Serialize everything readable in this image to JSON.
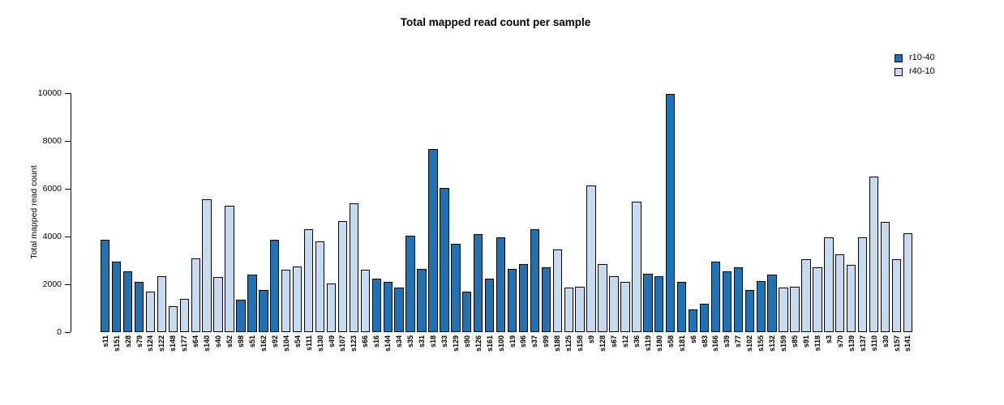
{
  "chart_data": {
    "type": "bar",
    "title": "Total mapped read count per sample",
    "xlabel": "",
    "ylabel": "Total mapped read count",
    "ylim": [
      0,
      10000
    ],
    "yticks": [
      0,
      2000,
      4000,
      6000,
      8000,
      10000
    ],
    "grid": false,
    "legend_position": "top-right",
    "legend": [
      {
        "label": "r10-40",
        "color": "#2171b5"
      },
      {
        "label": "r40-10",
        "color": "#c6dbef"
      }
    ],
    "bars": [
      {
        "sample": "s11",
        "group": "r10-40",
        "value": 3850
      },
      {
        "sample": "s151",
        "group": "r10-40",
        "value": 2950
      },
      {
        "sample": "s28",
        "group": "r10-40",
        "value": 2550
      },
      {
        "sample": "s79",
        "group": "r10-40",
        "value": 2100
      },
      {
        "sample": "s124",
        "group": "r40-10",
        "value": 1700
      },
      {
        "sample": "s122",
        "group": "r40-10",
        "value": 2350
      },
      {
        "sample": "s148",
        "group": "r40-10",
        "value": 1100
      },
      {
        "sample": "s177",
        "group": "r40-10",
        "value": 1400
      },
      {
        "sample": "s64",
        "group": "r40-10",
        "value": 3100
      },
      {
        "sample": "s140",
        "group": "r40-10",
        "value": 5550
      },
      {
        "sample": "s40",
        "group": "r40-10",
        "value": 2300
      },
      {
        "sample": "s52",
        "group": "r40-10",
        "value": 5300
      },
      {
        "sample": "s98",
        "group": "r10-40",
        "value": 1350
      },
      {
        "sample": "s51",
        "group": "r10-40",
        "value": 2400
      },
      {
        "sample": "s162",
        "group": "r10-40",
        "value": 1750
      },
      {
        "sample": "s92",
        "group": "r10-40",
        "value": 3850
      },
      {
        "sample": "s104",
        "group": "r40-10",
        "value": 2600
      },
      {
        "sample": "s54",
        "group": "r40-10",
        "value": 2750
      },
      {
        "sample": "s111",
        "group": "r40-10",
        "value": 4300
      },
      {
        "sample": "s130",
        "group": "r40-10",
        "value": 3800
      },
      {
        "sample": "s49",
        "group": "r40-10",
        "value": 2050
      },
      {
        "sample": "s107",
        "group": "r40-10",
        "value": 4650
      },
      {
        "sample": "s123",
        "group": "r40-10",
        "value": 5400
      },
      {
        "sample": "s66",
        "group": "r40-10",
        "value": 2600
      },
      {
        "sample": "s16",
        "group": "r10-40",
        "value": 2250
      },
      {
        "sample": "s144",
        "group": "r10-40",
        "value": 2100
      },
      {
        "sample": "s34",
        "group": "r10-40",
        "value": 1850
      },
      {
        "sample": "s35",
        "group": "r10-40",
        "value": 4050
      },
      {
        "sample": "s31",
        "group": "r10-40",
        "value": 2650
      },
      {
        "sample": "s18",
        "group": "r10-40",
        "value": 7650
      },
      {
        "sample": "s33",
        "group": "r10-40",
        "value": 6050
      },
      {
        "sample": "s129",
        "group": "r10-40",
        "value": 3700
      },
      {
        "sample": "s90",
        "group": "r10-40",
        "value": 1700
      },
      {
        "sample": "s126",
        "group": "r10-40",
        "value": 4100
      },
      {
        "sample": "s161",
        "group": "r10-40",
        "value": 2250
      },
      {
        "sample": "s100",
        "group": "r10-40",
        "value": 3950
      },
      {
        "sample": "s19",
        "group": "r10-40",
        "value": 2650
      },
      {
        "sample": "s96",
        "group": "r10-40",
        "value": 2850
      },
      {
        "sample": "s37",
        "group": "r10-40",
        "value": 4300
      },
      {
        "sample": "s99",
        "group": "r10-40",
        "value": 2700
      },
      {
        "sample": "s188",
        "group": "r40-10",
        "value": 3450
      },
      {
        "sample": "s125",
        "group": "r40-10",
        "value": 1850
      },
      {
        "sample": "s158",
        "group": "r40-10",
        "value": 1900
      },
      {
        "sample": "s9",
        "group": "r40-10",
        "value": 6150
      },
      {
        "sample": "s128",
        "group": "r40-10",
        "value": 2850
      },
      {
        "sample": "s67",
        "group": "r40-10",
        "value": 2350
      },
      {
        "sample": "s12",
        "group": "r40-10",
        "value": 2100
      },
      {
        "sample": "s36",
        "group": "r40-10",
        "value": 5450
      },
      {
        "sample": "s119",
        "group": "r10-40",
        "value": 2450
      },
      {
        "sample": "s180",
        "group": "r10-40",
        "value": 2350
      },
      {
        "sample": "s58",
        "group": "r10-40",
        "value": 9950
      },
      {
        "sample": "s181",
        "group": "r10-40",
        "value": 2100
      },
      {
        "sample": "s6",
        "group": "r10-40",
        "value": 950
      },
      {
        "sample": "s83",
        "group": "r10-40",
        "value": 1200
      },
      {
        "sample": "s166",
        "group": "r10-40",
        "value": 2950
      },
      {
        "sample": "s39",
        "group": "r10-40",
        "value": 2550
      },
      {
        "sample": "s77",
        "group": "r10-40",
        "value": 2700
      },
      {
        "sample": "s102",
        "group": "r10-40",
        "value": 1750
      },
      {
        "sample": "s155",
        "group": "r10-40",
        "value": 2150
      },
      {
        "sample": "s132",
        "group": "r10-40",
        "value": 2400
      },
      {
        "sample": "s159",
        "group": "r40-10",
        "value": 1850
      },
      {
        "sample": "s85",
        "group": "r40-10",
        "value": 1900
      },
      {
        "sample": "s91",
        "group": "r40-10",
        "value": 3050
      },
      {
        "sample": "s118",
        "group": "r40-10",
        "value": 2700
      },
      {
        "sample": "s3",
        "group": "r40-10",
        "value": 3950
      },
      {
        "sample": "s70",
        "group": "r40-10",
        "value": 3250
      },
      {
        "sample": "s139",
        "group": "r40-10",
        "value": 2800
      },
      {
        "sample": "s137",
        "group": "r40-10",
        "value": 3950
      },
      {
        "sample": "s110",
        "group": "r40-10",
        "value": 6500
      },
      {
        "sample": "s30",
        "group": "r40-10",
        "value": 4600
      },
      {
        "sample": "s157",
        "group": "r40-10",
        "value": 3050
      },
      {
        "sample": "s141",
        "group": "r40-10",
        "value": 4150
      }
    ]
  }
}
